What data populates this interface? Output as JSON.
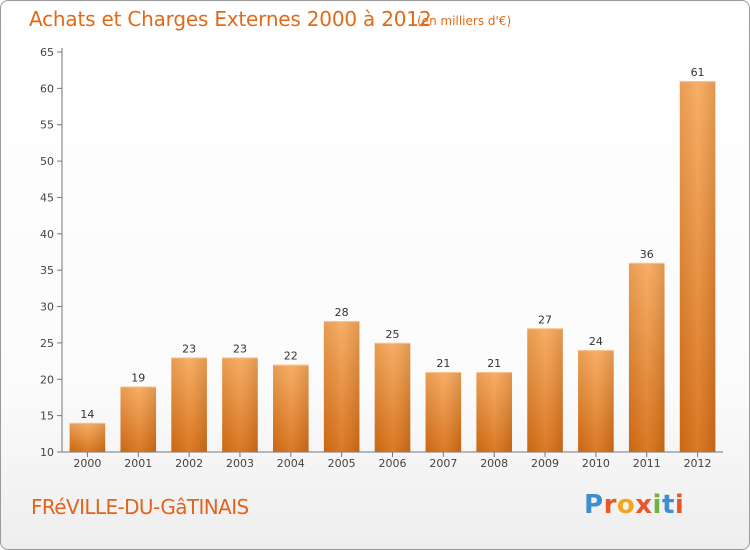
{
  "header": {
    "title": "Achats et Charges Externes 2000 à 2012",
    "subtitle": "(en milliers d'€)"
  },
  "footer": {
    "commune": "FRéVILLE-DU-GâTINAIS",
    "logo_text": "Proxiti",
    "logo_colors": [
      "#3f8fd0",
      "#e8562a",
      "#f2a51f",
      "#e8562a",
      "#6db33f",
      "#3f8fd0",
      "#e8562a"
    ]
  },
  "colors": {
    "bar_light": "#f7a85a",
    "bar_dark": "#d76e14",
    "accent": "#e06a1a"
  },
  "chart_data": {
    "type": "bar",
    "title": "Achats et Charges Externes 2000 à 2012",
    "subtitle": "(en milliers d'€)",
    "categories": [
      "2000",
      "2001",
      "2002",
      "2003",
      "2004",
      "2005",
      "2006",
      "2007",
      "2008",
      "2009",
      "2010",
      "2011",
      "2012"
    ],
    "values": [
      14,
      19,
      23,
      23,
      22,
      28,
      25,
      21,
      21,
      27,
      24,
      36,
      61
    ],
    "ylim": [
      10,
      65
    ],
    "yticks": [
      10,
      15,
      20,
      25,
      30,
      35,
      40,
      45,
      50,
      55,
      60,
      65
    ],
    "grid": false,
    "legend": "none",
    "xlabel": "",
    "ylabel": ""
  }
}
